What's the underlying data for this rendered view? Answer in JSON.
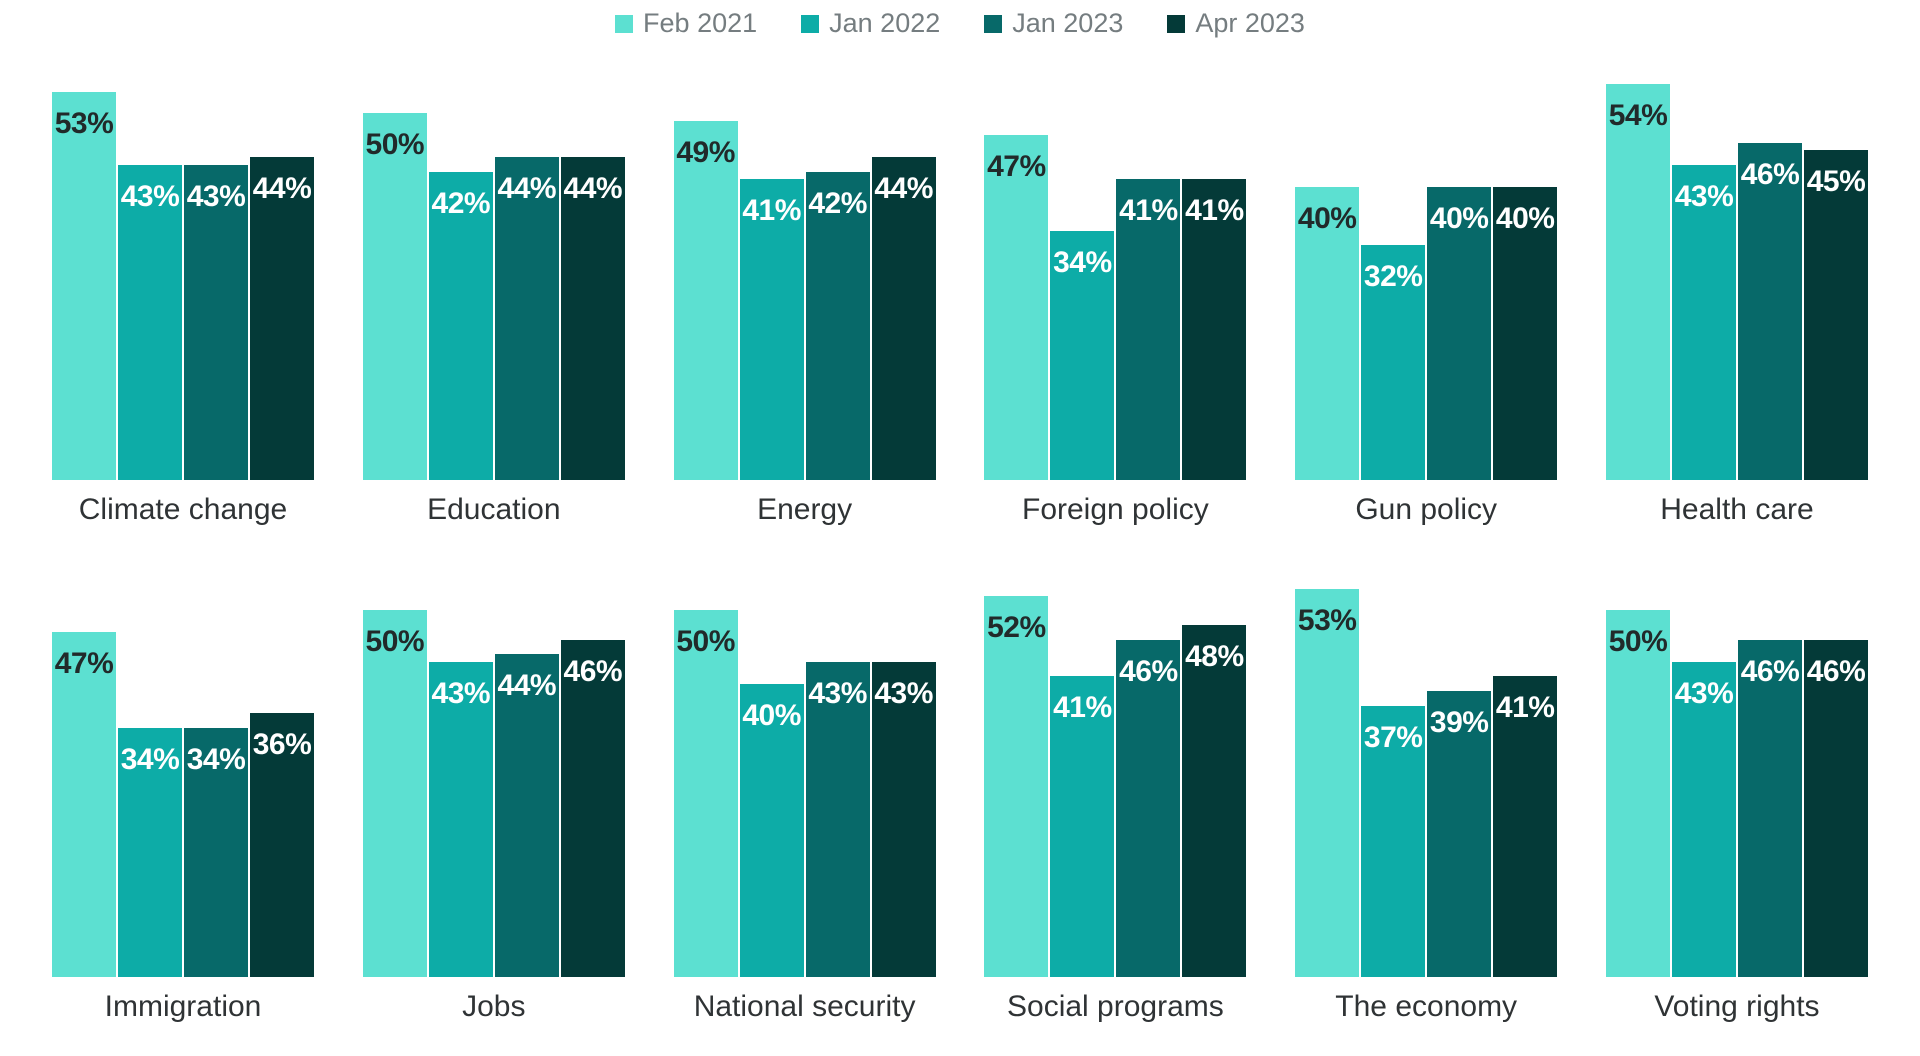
{
  "legend": {
    "items": [
      {
        "label": "Feb 2021",
        "color": "#5ce0d1"
      },
      {
        "label": "Jan 2022",
        "color": "#0daca7"
      },
      {
        "label": "Jan 2023",
        "color": "#076969"
      },
      {
        "label": "Apr 2023",
        "color": "#043a38"
      }
    ]
  },
  "chart_data": {
    "type": "bar",
    "title": "",
    "layout": "small-multiples grid, 2 rows x 6 charts, shared legend on top, no axes or gridlines, value labels inside bar tops",
    "legend_position": "top-center",
    "grid": false,
    "value_suffix": "%",
    "ylim": [
      0,
      56
    ],
    "categories": [
      "Climate change",
      "Education",
      "Energy",
      "Foreign policy",
      "Gun policy",
      "Health care",
      "Immigration",
      "Jobs",
      "National security",
      "Social programs",
      "The economy",
      "Voting rights"
    ],
    "series": [
      {
        "name": "Feb 2021",
        "color": "#5ce0d1",
        "label_color": "#212a2a",
        "values": [
          53,
          50,
          49,
          47,
          40,
          54,
          47,
          50,
          50,
          52,
          53,
          50
        ]
      },
      {
        "name": "Jan 2022",
        "color": "#0daca7",
        "label_color": "#ffffff",
        "values": [
          43,
          42,
          41,
          34,
          32,
          43,
          34,
          43,
          40,
          41,
          37,
          43
        ]
      },
      {
        "name": "Jan 2023",
        "color": "#076969",
        "label_color": "#ffffff",
        "values": [
          43,
          44,
          42,
          41,
          40,
          46,
          34,
          44,
          43,
          46,
          39,
          46
        ]
      },
      {
        "name": "Apr 2023",
        "color": "#043a38",
        "label_color": "#ffffff",
        "values": [
          44,
          44,
          44,
          41,
          40,
          45,
          36,
          46,
          43,
          48,
          41,
          46
        ]
      }
    ]
  }
}
